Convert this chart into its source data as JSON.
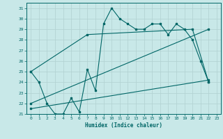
{
  "title": "",
  "xlabel": "Humidex (Indice chaleur)",
  "ylabel": "",
  "xlim": [
    -0.5,
    23.5
  ],
  "ylim": [
    21,
    31.5
  ],
  "yticks": [
    21,
    22,
    23,
    24,
    25,
    26,
    27,
    28,
    29,
    30,
    31
  ],
  "xticks": [
    0,
    1,
    2,
    3,
    4,
    5,
    6,
    7,
    8,
    9,
    10,
    11,
    12,
    13,
    14,
    15,
    16,
    17,
    18,
    19,
    20,
    21,
    22,
    23
  ],
  "bg_color": "#c8e8e8",
  "grid_color": "#b0d0d0",
  "line_color": "#006666",
  "line1_x": [
    0,
    1,
    2,
    3,
    4,
    5,
    6,
    7,
    8,
    9,
    10,
    11,
    12,
    13,
    14,
    15,
    16,
    17,
    18,
    19,
    20,
    21,
    22
  ],
  "line1_y": [
    25,
    24,
    22,
    21,
    21,
    22.5,
    21.2,
    25.2,
    23.2,
    29.5,
    31,
    30,
    29.5,
    29,
    29,
    29.5,
    29.5,
    28.5,
    29.5,
    29,
    28,
    26,
    24
  ],
  "line2_x": [
    0,
    7,
    20,
    22
  ],
  "line2_y": [
    25,
    28.5,
    29,
    24
  ],
  "line3_x": [
    0,
    22
  ],
  "line3_y": [
    22,
    29
  ],
  "line4_x": [
    0,
    22
  ],
  "line4_y": [
    21.5,
    24.2
  ]
}
